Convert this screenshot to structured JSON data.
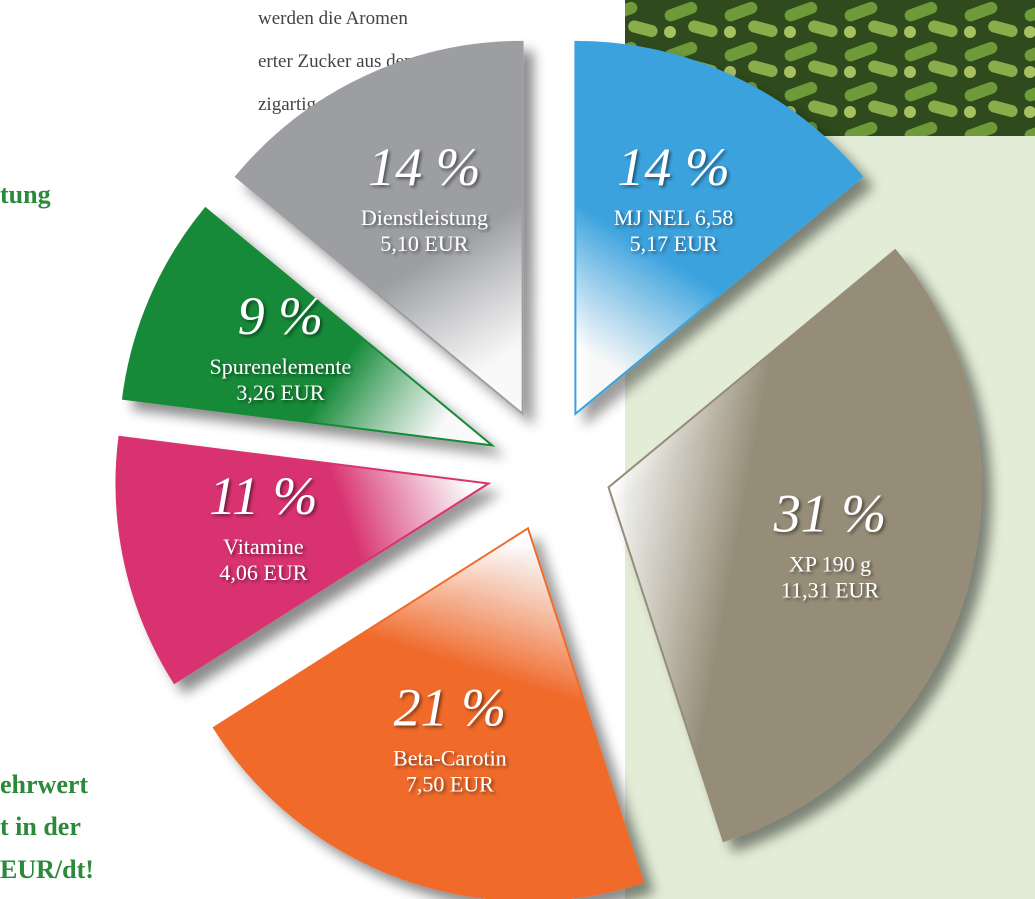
{
  "page_text": {
    "paragraph": [
      "werden die Aromen",
      "erter Zucker aus dem",
      "zigartigen Duft."
    ],
    "heading": "tung",
    "callout": [
      "ehrwert",
      "t in der",
      "EUR/dt!"
    ]
  },
  "chart_data": {
    "type": "pie",
    "categories": [
      "MJ NEL 6,58",
      "XP 190 g",
      "Beta-Carotin",
      "Vitamine",
      "Spurenelemente",
      "Dienstleistung"
    ],
    "values": [
      14,
      31,
      21,
      11,
      9,
      14
    ],
    "value_labels": [
      "14 %",
      "31 %",
      "21 %",
      "11 %",
      "9 %",
      "14 %"
    ],
    "details": [
      "5,17 EUR",
      "11,31 EUR",
      "7,50 EUR",
      "4,06 EUR",
      "3,26 EUR",
      "5,10 EUR"
    ],
    "colors": [
      "#3aa2de",
      "#968d78",
      "#f06a2c",
      "#d8326f",
      "#158a38",
      "#9c9ea2"
    ]
  }
}
